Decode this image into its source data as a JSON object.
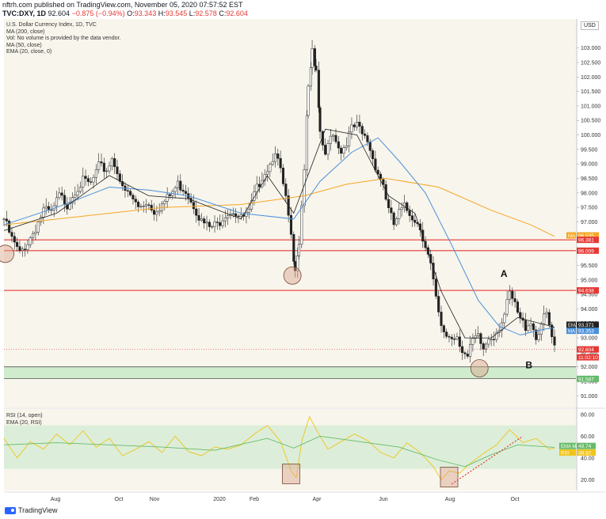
{
  "header": {
    "line1": "nftrh.com published on TradingView.com, November 05, 2020 07:57:52 EST",
    "symbol": "TVC:DXY, 1D",
    "last": "92.604",
    "change": "−0.875 (−0.94%)",
    "o_label": "O:",
    "o_val": "93.343",
    "h_label": "H:",
    "h_val": "93.545",
    "l_label": "L:",
    "l_val": "92.578",
    "c_label": "C:",
    "c_val": "92.604"
  },
  "legend": {
    "title": "U.S. Dollar Currency Index, 1D, TVC",
    "ma200": "MA (200, close)",
    "vol": "Vol: No volume is provided by the data vendor.",
    "ma50": "MA (50, close)",
    "ema20": "EMA (20, close, 0)",
    "rsi": "RSI (14, open)",
    "rsi_ema": "EMA (20, RSI)"
  },
  "currency_button": "USD",
  "footer_brand": "TradingView",
  "colors": {
    "price_candle": "#222222",
    "ma200": "#f5a623",
    "ma50": "#4a90d9",
    "ema20": "#222222",
    "rsi": "#f0c419",
    "rsi_ema": "#66bb6a",
    "red_line": "#e53935",
    "support_zone": "#c8eac8",
    "circle": "#d9a58c",
    "background": "#f8f5ec"
  },
  "chart_data": [
    {
      "type": "candlestick",
      "title": "U.S. Dollar Currency Index, 1D, TVC",
      "ylim": [
        90.6,
        104.0
      ],
      "y_ticks": [
        "103.000",
        "102.500",
        "102.000",
        "101.500",
        "101.000",
        "100.500",
        "100.000",
        "99.500",
        "99.000",
        "98.500",
        "98.000",
        "97.500",
        "97.000",
        "96.500",
        "96.000",
        "95.500",
        "95.000",
        "94.500",
        "94.000",
        "93.500",
        "93.000",
        "92.500",
        "92.000",
        "91.500",
        "91.000"
      ],
      "x_labels": [
        "Aug",
        "Oct",
        "Nov",
        "2020",
        "Feb",
        "Apr",
        "Jun",
        "Aug",
        "Oct"
      ],
      "close_path": [
        [
          0,
          97.1
        ],
        [
          6,
          96.4
        ],
        [
          12,
          95.9
        ],
        [
          18,
          96.3
        ],
        [
          24,
          96.8
        ],
        [
          30,
          97.4
        ],
        [
          36,
          97.3
        ],
        [
          42,
          97.9
        ],
        [
          48,
          97.6
        ],
        [
          54,
          98.1
        ],
        [
          60,
          98.4
        ],
        [
          66,
          98.3
        ],
        [
          72,
          98.9
        ],
        [
          78,
          98.8
        ],
        [
          82,
          99.2
        ],
        [
          86,
          98.8
        ],
        [
          90,
          98.1
        ],
        [
          96,
          97.9
        ],
        [
          102,
          97.5
        ],
        [
          108,
          97.7
        ],
        [
          114,
          97.4
        ],
        [
          120,
          97.6
        ],
        [
          126,
          97.9
        ],
        [
          132,
          98.3
        ],
        [
          138,
          98.1
        ],
        [
          144,
          97.6
        ],
        [
          150,
          97.0
        ],
        [
          156,
          96.8
        ],
        [
          162,
          96.9
        ],
        [
          168,
          97.3
        ],
        [
          174,
          97.4
        ],
        [
          180,
          97.1
        ],
        [
          186,
          97.3
        ],
        [
          190,
          97.9
        ],
        [
          196,
          98.6
        ],
        [
          202,
          99.0
        ],
        [
          206,
          99.5
        ],
        [
          210,
          98.7
        ],
        [
          214,
          97.8
        ],
        [
          218,
          96.4
        ],
        [
          221,
          95.2
        ],
        [
          224,
          96.4
        ],
        [
          228,
          98.9
        ],
        [
          231,
          101.7
        ],
        [
          234,
          102.8
        ],
        [
          237,
          102.1
        ],
        [
          240,
          100.1
        ],
        [
          244,
          99.2
        ],
        [
          248,
          100.1
        ],
        [
          252,
          99.9
        ],
        [
          256,
          99.4
        ],
        [
          260,
          99.8
        ],
        [
          264,
          100.2
        ],
        [
          268,
          100.3
        ],
        [
          272,
          100.0
        ],
        [
          276,
          99.8
        ],
        [
          280,
          99.2
        ],
        [
          284,
          98.7
        ],
        [
          288,
          98.3
        ],
        [
          292,
          97.4
        ],
        [
          296,
          96.9
        ],
        [
          300,
          97.3
        ],
        [
          304,
          97.5
        ],
        [
          308,
          97.3
        ],
        [
          312,
          97.1
        ],
        [
          316,
          96.8
        ],
        [
          320,
          96.2
        ],
        [
          324,
          95.5
        ],
        [
          328,
          94.3
        ],
        [
          332,
          93.3
        ],
        [
          336,
          93.1
        ],
        [
          340,
          93.0
        ],
        [
          344,
          93.1
        ],
        [
          348,
          92.6
        ],
        [
          352,
          92.3
        ],
        [
          356,
          92.9
        ],
        [
          360,
          93.0
        ],
        [
          364,
          92.6
        ],
        [
          368,
          93.0
        ],
        [
          372,
          93.1
        ],
        [
          376,
          93.4
        ],
        [
          380,
          93.8
        ],
        [
          384,
          94.5
        ],
        [
          388,
          94.1
        ],
        [
          392,
          93.6
        ],
        [
          396,
          93.4
        ],
        [
          400,
          93.6
        ],
        [
          404,
          93.0
        ],
        [
          408,
          93.5
        ],
        [
          412,
          93.8
        ],
        [
          416,
          93.0
        ],
        [
          418,
          92.6
        ]
      ],
      "series": [
        {
          "name": "MA (200, close)",
          "values": [
            [
              0,
              96.9
            ],
            [
              60,
              97.2
            ],
            [
              120,
              97.5
            ],
            [
              180,
              97.6
            ],
            [
              228,
              97.9
            ],
            [
              260,
              98.3
            ],
            [
              290,
              98.5
            ],
            [
              330,
              98.2
            ],
            [
              370,
              97.4
            ],
            [
              400,
              96.9
            ],
            [
              418,
              96.5
            ]
          ]
        },
        {
          "name": "MA (50, close)",
          "values": [
            [
              0,
              96.9
            ],
            [
              40,
              97.5
            ],
            [
              80,
              98.2
            ],
            [
              110,
              98.1
            ],
            [
              140,
              97.9
            ],
            [
              180,
              97.3
            ],
            [
              220,
              97.1
            ],
            [
              240,
              98.4
            ],
            [
              264,
              99.4
            ],
            [
              284,
              99.9
            ],
            [
              300,
              99.1
            ],
            [
              320,
              98.0
            ],
            [
              340,
              96.2
            ],
            [
              360,
              94.3
            ],
            [
              376,
              93.4
            ],
            [
              392,
              93.1
            ],
            [
              410,
              93.3
            ],
            [
              418,
              93.35
            ]
          ]
        },
        {
          "name": "EMA (20, close, 0)",
          "values": [
            [
              0,
              96.7
            ],
            [
              40,
              97.3
            ],
            [
              80,
              98.6
            ],
            [
              110,
              97.9
            ],
            [
              140,
              97.8
            ],
            [
              180,
              97.1
            ],
            [
              200,
              98.6
            ],
            [
              220,
              97.3
            ],
            [
              244,
              100.2
            ],
            [
              268,
              100.0
            ],
            [
              292,
              97.9
            ],
            [
              312,
              97.3
            ],
            [
              332,
              94.6
            ],
            [
              350,
              93.0
            ],
            [
              370,
              93.0
            ],
            [
              390,
              93.7
            ],
            [
              418,
              93.37
            ]
          ]
        }
      ],
      "horizontal_lines": [
        96.381,
        96.009,
        94.638,
        92.0,
        91.6
      ],
      "support_zone": [
        91.587,
        92.0
      ],
      "value_labels": [
        {
          "text": "MA",
          "value": "96.535"
        },
        {
          "text": "",
          "value": "96.381"
        },
        {
          "text": "",
          "value": "96.009"
        },
        {
          "text": "",
          "value": "94.638"
        },
        {
          "text": "EMA",
          "value": "93.371"
        },
        {
          "text": "MA",
          "value": "93.353"
        },
        {
          "text": "",
          "value": "92.604"
        },
        {
          "text": "",
          "value": "11:02:10"
        },
        {
          "text": "",
          "value": "91.587"
        }
      ],
      "annotations": [
        {
          "text": "A"
        },
        {
          "text": "B"
        }
      ]
    },
    {
      "type": "line",
      "title": "RSI (14, open)",
      "ylim": [
        10,
        85
      ],
      "y_ticks": [
        "80.00",
        "60.00",
        "40.00",
        "20.00"
      ],
      "band": [
        30,
        70
      ],
      "series": [
        {
          "name": "RSI (14, open)",
          "values": [
            [
              0,
              58
            ],
            [
              10,
              40
            ],
            [
              20,
              55
            ],
            [
              30,
              48
            ],
            [
              40,
              62
            ],
            [
              50,
              52
            ],
            [
              60,
              65
            ],
            [
              70,
              50
            ],
            [
              80,
              58
            ],
            [
              90,
              42
            ],
            [
              100,
              48
            ],
            [
              110,
              55
            ],
            [
              120,
              45
            ],
            [
              130,
              60
            ],
            [
              140,
              46
            ],
            [
              150,
              42
            ],
            [
              160,
              50
            ],
            [
              170,
              48
            ],
            [
              180,
              52
            ],
            [
              190,
              62
            ],
            [
              200,
              70
            ],
            [
              210,
              55
            ],
            [
              218,
              28
            ],
            [
              222,
              22
            ],
            [
              226,
              55
            ],
            [
              232,
              78
            ],
            [
              238,
              64
            ],
            [
              246,
              48
            ],
            [
              256,
              55
            ],
            [
              266,
              62
            ],
            [
              276,
              56
            ],
            [
              286,
              45
            ],
            [
              296,
              40
            ],
            [
              306,
              54
            ],
            [
              316,
              45
            ],
            [
              326,
              32
            ],
            [
              332,
              20
            ],
            [
              338,
              28
            ],
            [
              346,
              26
            ],
            [
              354,
              35
            ],
            [
              364,
              44
            ],
            [
              374,
              52
            ],
            [
              384,
              66
            ],
            [
              394,
              54
            ],
            [
              404,
              58
            ],
            [
              414,
              48
            ],
            [
              418,
              49
            ]
          ]
        },
        {
          "name": "EMA (20, RSI)",
          "values": [
            [
              0,
              52
            ],
            [
              40,
              54
            ],
            [
              80,
              52
            ],
            [
              120,
              50
            ],
            [
              160,
              47
            ],
            [
              200,
              58
            ],
            [
              220,
              49
            ],
            [
              240,
              60
            ],
            [
              270,
              55
            ],
            [
              300,
              50
            ],
            [
              330,
              38
            ],
            [
              350,
              32
            ],
            [
              370,
              43
            ],
            [
              390,
              52
            ],
            [
              418,
              49.74
            ]
          ]
        }
      ],
      "value_labels": [
        {
          "text": "EMA MA",
          "value": "49.74"
        },
        {
          "text": "RSI",
          "value": "48.82"
        }
      ]
    }
  ]
}
